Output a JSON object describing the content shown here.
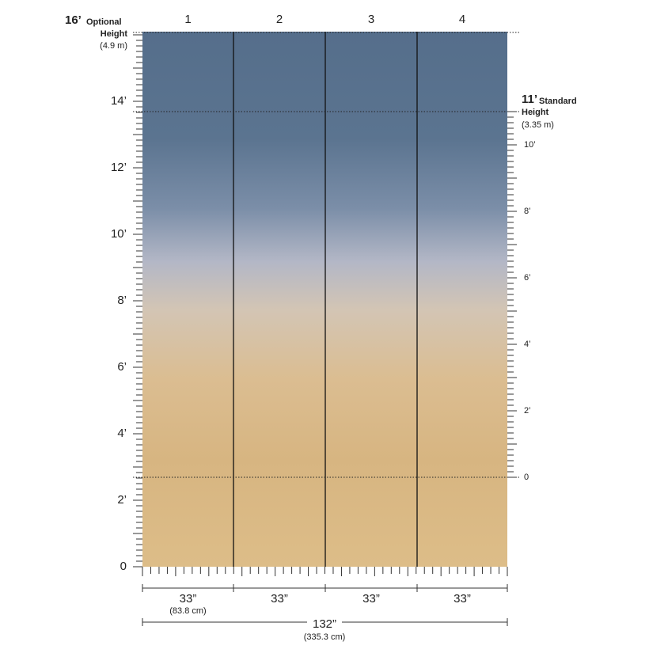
{
  "panels": [
    "1",
    "2",
    "3",
    "4"
  ],
  "optional_height": {
    "feet": "16’",
    "label": "Optional",
    "label2": "Height",
    "metric": "(4.9 m)"
  },
  "standard_height": {
    "feet": "11’",
    "label": "Standard",
    "label2": "Height",
    "metric": "(3.35 m)"
  },
  "left_scale": [
    "0",
    "2’",
    "4’",
    "6’",
    "8’",
    "10’",
    "12’",
    "14’"
  ],
  "right_scale": [
    "0",
    "2’",
    "4’",
    "6’",
    "8’",
    "10’"
  ],
  "panel_widths": [
    {
      "imperial": "33”",
      "metric": "(83.8 cm)"
    },
    {
      "imperial": "33”"
    },
    {
      "imperial": "33”"
    },
    {
      "imperial": "33”"
    }
  ],
  "total_width": {
    "imperial": "132”",
    "metric": "(335.3 cm)"
  }
}
